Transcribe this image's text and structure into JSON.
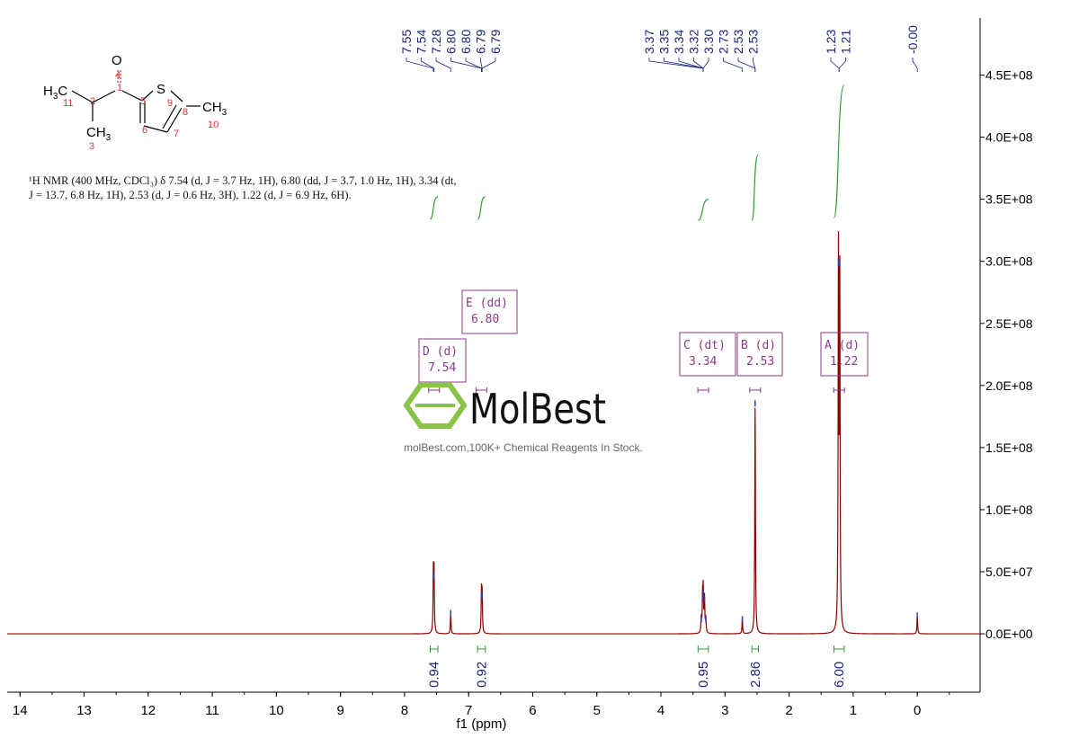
{
  "chart_data": {
    "type": "line",
    "xlabel": "f1 (ppm)",
    "xlim": [
      14.2,
      -0.98
    ],
    "ylim": [
      -47000000,
      496000000
    ],
    "x_ticks": [
      "14",
      "13",
      "12",
      "11",
      "10",
      "9",
      "8",
      "7",
      "6",
      "5",
      "4",
      "3",
      "2",
      "1",
      "0"
    ],
    "y_ticks": [
      "0.0E+00",
      "5.0E+07",
      "1.0E+08",
      "1.5E+08",
      "2.0E+08",
      "2.5E+08",
      "3.0E+08",
      "3.5E+08",
      "4.0E+08",
      "4.5E+08"
    ],
    "y_tick_values": [
      0,
      50000000,
      100000000,
      150000000,
      200000000,
      250000000,
      300000000,
      350000000,
      400000000,
      450000000
    ],
    "spectrum_color": "#8b0000",
    "integral_color": "#2e9e2e",
    "label_color": "#1a237e",
    "peaks": [
      {
        "ppm": 7.55,
        "height": 46000000
      },
      {
        "ppm": 7.54,
        "height": 47000000
      },
      {
        "ppm": 7.28,
        "height": 17000000
      },
      {
        "ppm": 6.8,
        "height": 32000000
      },
      {
        "ppm": 6.79,
        "height": 31000000
      },
      {
        "ppm": 3.37,
        "height": 12000000
      },
      {
        "ppm": 3.35,
        "height": 28000000
      },
      {
        "ppm": 3.34,
        "height": 33000000
      },
      {
        "ppm": 3.32,
        "height": 28000000
      },
      {
        "ppm": 3.3,
        "height": 12000000
      },
      {
        "ppm": 2.73,
        "height": 12000000
      },
      {
        "ppm": 2.53,
        "height": 186000000
      },
      {
        "ppm": 1.23,
        "height": 300000000
      },
      {
        "ppm": 1.21,
        "height": 298000000
      },
      {
        "ppm": 0.0,
        "height": 15000000
      }
    ],
    "peak_label_groups": [
      {
        "labels": [
          "7.55",
          "7.54",
          "7.28",
          "6.80",
          "6.80",
          "6.79",
          "6.79"
        ],
        "targets": [
          7.55,
          7.54,
          7.28,
          6.8,
          6.8,
          6.79,
          6.79
        ]
      },
      {
        "labels": [
          "3.37",
          "3.35",
          "3.34",
          "3.32",
          "3.30",
          "2.73",
          "2.53",
          "2.53"
        ],
        "targets": [
          3.34,
          3.34,
          3.34,
          3.34,
          3.34,
          2.73,
          2.53,
          2.53
        ]
      },
      {
        "labels": [
          "1.23",
          "1.21"
        ],
        "targets": [
          1.22,
          1.22
        ]
      },
      {
        "labels": [
          "-0.00"
        ],
        "targets": [
          0.0
        ]
      }
    ],
    "integrals": [
      {
        "from": 7.6,
        "to": 7.48,
        "value": "0.94",
        "curve_top": 352000000,
        "curve_bottom": 334000000
      },
      {
        "from": 6.86,
        "to": 6.74,
        "value": "0.92",
        "curve_top": 352000000,
        "curve_bottom": 334000000
      },
      {
        "from": 3.42,
        "to": 3.26,
        "value": "0.95",
        "curve_top": 350000000,
        "curve_bottom": 333000000
      },
      {
        "from": 2.58,
        "to": 2.48,
        "value": "2.86",
        "curve_top": 386000000,
        "curve_bottom": 333000000
      },
      {
        "from": 1.3,
        "to": 1.14,
        "value": "6.00",
        "curve_top": 442000000,
        "curve_bottom": 335000000
      }
    ],
    "multiplets": [
      {
        "label": "D (d)",
        "shift": "7.54",
        "ppm": 7.54
      },
      {
        "label": "E (dd)",
        "shift": "6.80",
        "ppm": 6.8
      },
      {
        "label": "C (dt)",
        "shift": "3.34",
        "ppm": 3.34
      },
      {
        "label": "B (d)",
        "shift": "2.53",
        "ppm": 2.53
      },
      {
        "label": "A (d)",
        "shift": "1.22",
        "ppm": 1.22
      }
    ]
  },
  "structure": {
    "atoms": {
      "O": "O",
      "S": "S",
      "H3C": "H",
      "CH3a": "CH",
      "CH3b": "CH",
      "sub3": "3"
    },
    "numbers": [
      "1",
      "2",
      "3",
      "4",
      "5",
      "6",
      "7",
      "8",
      "9",
      "10",
      "11"
    ]
  },
  "nmr_text": {
    "line1": "¹H NMR (400 MHz, CDCl₃) δ 7.54 (d, J = 3.7 Hz, 1H), 6.80 (dd, J = 3.7, 1.0 Hz, 1H), 3.34 (dt,",
    "line2": "J = 13.7, 6.8 Hz, 1H), 2.53 (d, J = 0.6 Hz, 3H), 1.22 (d, J = 6.9 Hz, 6H)."
  },
  "watermark": {
    "logo": "MolBest",
    "tagline": "molBest.com,100K+ Chemical Reagents In Stock."
  }
}
